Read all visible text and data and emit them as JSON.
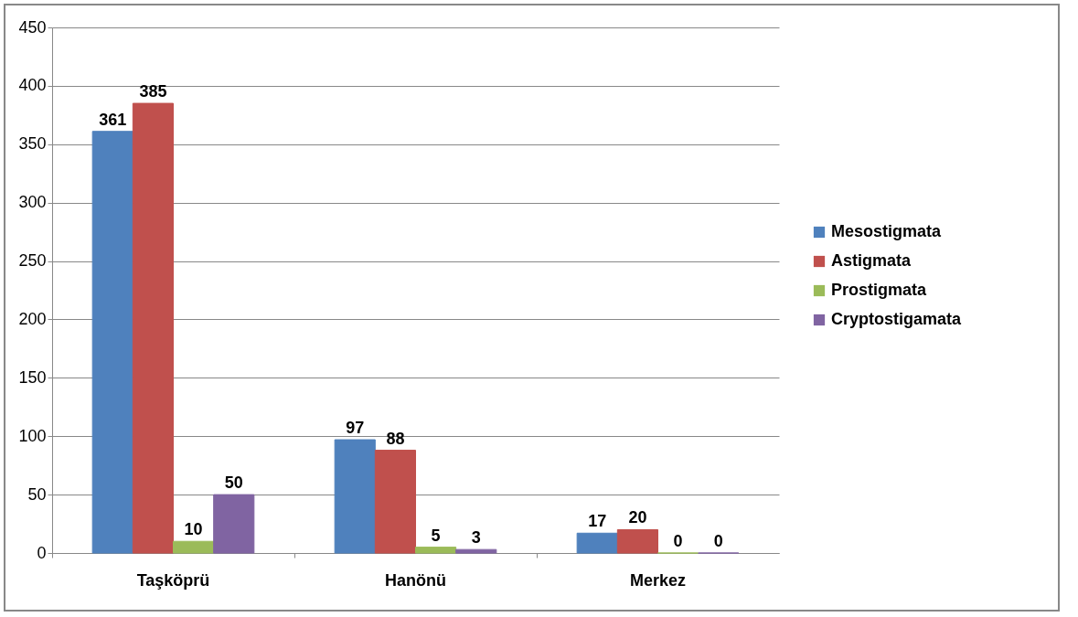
{
  "chart_data": {
    "type": "bar",
    "categories": [
      "Taşköprü",
      "Hanönü",
      "Merkez"
    ],
    "series": [
      {
        "name": "Mesostigmata",
        "color": "#4f81bd",
        "values": [
          361,
          97,
          17
        ]
      },
      {
        "name": "Astigmata",
        "color": "#c0504d",
        "values": [
          385,
          88,
          20
        ]
      },
      {
        "name": "Prostigmata",
        "color": "#9bbb59",
        "values": [
          10,
          5,
          0
        ]
      },
      {
        "name": "Cryptostigamata",
        "color": "#8064a2",
        "values": [
          50,
          3,
          0
        ]
      }
    ],
    "ylim": [
      0,
      450
    ],
    "yticks": [
      0,
      50,
      100,
      150,
      200,
      250,
      300,
      350,
      400,
      450
    ],
    "grid": "y",
    "legend": "right",
    "data_labels": true
  }
}
